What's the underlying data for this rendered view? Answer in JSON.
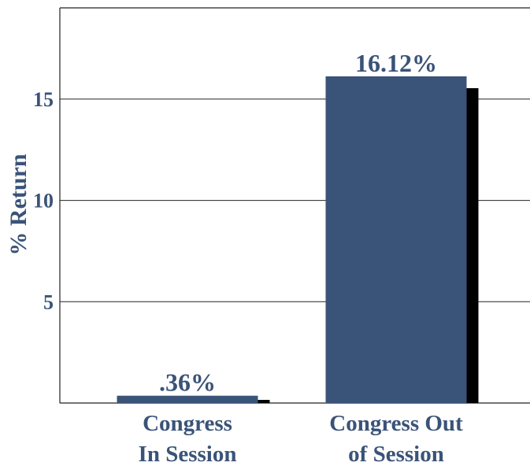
{
  "colors": {
    "bar": "#3a5378",
    "shadow": "#000000",
    "text": "#3a5378",
    "axis": "#222222",
    "grid": "#222222",
    "background": "#ffffff"
  },
  "chart_data": {
    "type": "bar",
    "title": "",
    "xlabel": "",
    "ylabel": "% Return",
    "ylim": [
      0,
      19.5
    ],
    "yticks": [
      5,
      10,
      15
    ],
    "ytick_labels": [
      "5",
      "10",
      "15"
    ],
    "grid": true,
    "legend": "none",
    "categories": [
      [
        "Congress",
        "In Session"
      ],
      [
        "Congress Out",
        "of Session"
      ]
    ],
    "values": [
      0.36,
      16.12
    ],
    "data_labels": [
      ".36%",
      "16.12%"
    ]
  }
}
